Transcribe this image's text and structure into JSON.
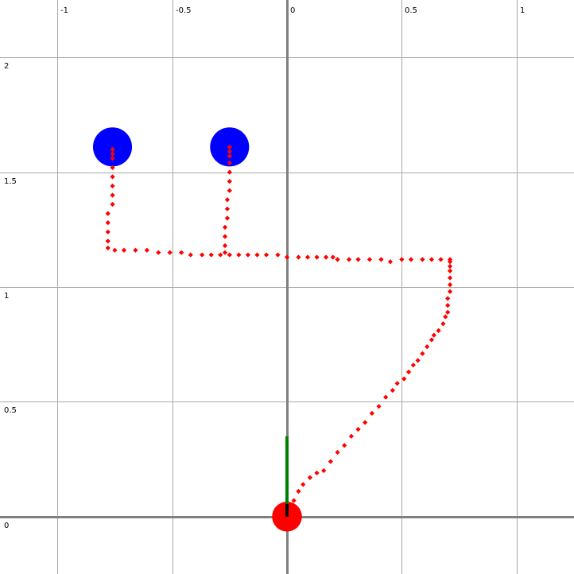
{
  "chart_data": {
    "type": "scatter",
    "title": "",
    "xlabel": "",
    "ylabel": "",
    "xlim": [
      -1.25,
      1.25
    ],
    "ylim": [
      -0.25,
      2.25
    ],
    "grid": true,
    "x_ticks": [
      {
        "value": -1,
        "label": "-1"
      },
      {
        "value": -0.5,
        "label": "-0.5"
      },
      {
        "value": 0,
        "label": "0"
      },
      {
        "value": 0.5,
        "label": "0.5"
      },
      {
        "value": 1,
        "label": "1"
      }
    ],
    "y_ticks": [
      {
        "value": 0,
        "label": "0"
      },
      {
        "value": 0.5,
        "label": "0.5"
      },
      {
        "value": 1,
        "label": "1"
      },
      {
        "value": 1.5,
        "label": "1.5"
      },
      {
        "value": 2,
        "label": "2"
      }
    ],
    "targets": [
      {
        "x": -0.76,
        "y": 1.61,
        "r": 0.085,
        "color": "#0000ff"
      },
      {
        "x": -0.25,
        "y": 1.61,
        "r": 0.085,
        "color": "#0000ff"
      }
    ],
    "robot": {
      "x": 0.0,
      "y": 0.0,
      "r": 0.065,
      "color": "#ff0000",
      "heading_to": [
        0.0,
        0.35
      ],
      "heading_color": "#008000"
    },
    "path": {
      "color": "#ff0000",
      "points": [
        [
          0.02,
          0.03
        ],
        [
          0.03,
          0.07
        ],
        [
          0.05,
          0.11
        ],
        [
          0.07,
          0.14
        ],
        [
          0.1,
          0.17
        ],
        [
          0.13,
          0.19
        ],
        [
          0.16,
          0.2
        ],
        [
          0.19,
          0.24
        ],
        [
          0.22,
          0.28
        ],
        [
          0.25,
          0.31
        ],
        [
          0.28,
          0.35
        ],
        [
          0.31,
          0.38
        ],
        [
          0.34,
          0.41
        ],
        [
          0.37,
          0.45
        ],
        [
          0.4,
          0.48
        ],
        [
          0.43,
          0.52
        ],
        [
          0.46,
          0.55
        ],
        [
          0.48,
          0.58
        ],
        [
          0.51,
          0.6
        ],
        [
          0.53,
          0.63
        ],
        [
          0.55,
          0.66
        ],
        [
          0.57,
          0.68
        ],
        [
          0.59,
          0.71
        ],
        [
          0.61,
          0.74
        ],
        [
          0.63,
          0.77
        ],
        [
          0.64,
          0.79
        ],
        [
          0.66,
          0.81
        ],
        [
          0.68,
          0.84
        ],
        [
          0.69,
          0.87
        ],
        [
          0.7,
          0.89
        ],
        [
          0.7,
          0.92
        ],
        [
          0.7,
          0.95
        ],
        [
          0.71,
          0.98
        ],
        [
          0.71,
          1.01
        ],
        [
          0.71,
          1.04
        ],
        [
          0.71,
          1.07
        ],
        [
          0.71,
          1.09
        ],
        [
          0.71,
          1.11
        ],
        [
          0.71,
          1.12
        ],
        [
          0.67,
          1.12
        ],
        [
          0.63,
          1.12
        ],
        [
          0.59,
          1.12
        ],
        [
          0.54,
          1.12
        ],
        [
          0.5,
          1.12
        ],
        [
          0.45,
          1.11
        ],
        [
          0.41,
          1.12
        ],
        [
          0.36,
          1.12
        ],
        [
          0.31,
          1.12
        ],
        [
          0.27,
          1.12
        ],
        [
          0.22,
          1.12
        ],
        [
          0.2,
          1.13
        ],
        [
          0.17,
          1.13
        ],
        [
          0.13,
          1.13
        ],
        [
          0.09,
          1.13
        ],
        [
          0.05,
          1.13
        ],
        [
          0.0,
          1.13
        ],
        [
          -0.04,
          1.14
        ],
        [
          -0.09,
          1.14
        ],
        [
          -0.13,
          1.14
        ],
        [
          -0.17,
          1.14
        ],
        [
          -0.21,
          1.14
        ],
        [
          -0.25,
          1.14
        ],
        [
          -0.29,
          1.14
        ],
        [
          -0.33,
          1.14
        ],
        [
          -0.37,
          1.14
        ],
        [
          -0.42,
          1.14
        ],
        [
          -0.46,
          1.15
        ],
        [
          -0.51,
          1.15
        ],
        [
          -0.56,
          1.15
        ],
        [
          -0.61,
          1.16
        ],
        [
          -0.66,
          1.16
        ],
        [
          -0.71,
          1.16
        ],
        [
          -0.75,
          1.16
        ],
        [
          -0.78,
          1.17
        ],
        [
          -0.78,
          1.2
        ],
        [
          -0.78,
          1.24
        ],
        [
          -0.78,
          1.28
        ],
        [
          -0.78,
          1.32
        ],
        [
          -0.76,
          1.36
        ],
        [
          -0.76,
          1.4
        ],
        [
          -0.76,
          1.44
        ],
        [
          -0.76,
          1.48
        ],
        [
          -0.76,
          1.52
        ],
        [
          -0.76,
          1.56
        ],
        [
          -0.76,
          1.58
        ],
        [
          -0.76,
          1.6
        ],
        [
          -0.27,
          1.15
        ],
        [
          -0.27,
          1.18
        ],
        [
          -0.27,
          1.22
        ],
        [
          -0.27,
          1.26
        ],
        [
          -0.26,
          1.3
        ],
        [
          -0.26,
          1.34
        ],
        [
          -0.26,
          1.38
        ],
        [
          -0.25,
          1.42
        ],
        [
          -0.25,
          1.46
        ],
        [
          -0.25,
          1.5
        ],
        [
          -0.25,
          1.54
        ],
        [
          -0.25,
          1.57
        ],
        [
          -0.25,
          1.59
        ],
        [
          -0.25,
          1.61
        ]
      ]
    }
  }
}
